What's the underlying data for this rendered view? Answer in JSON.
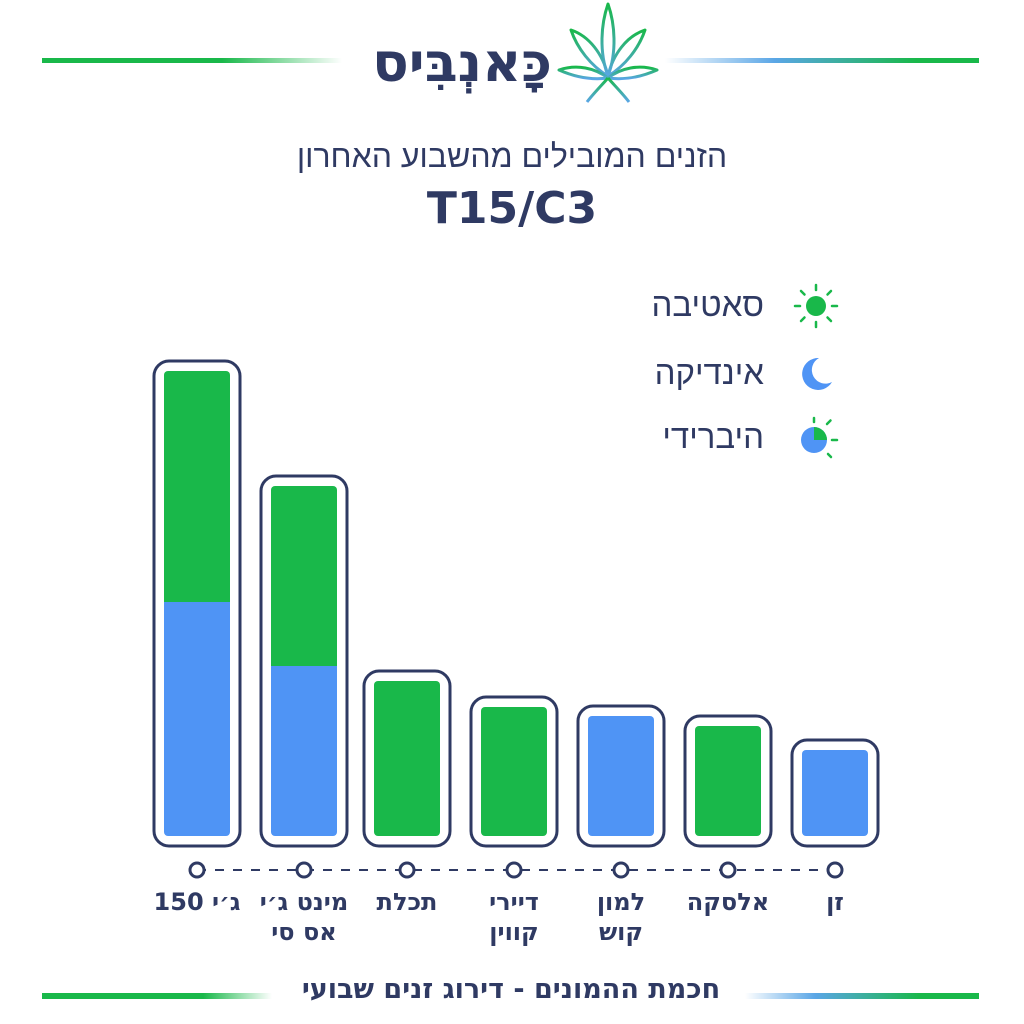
{
  "brand": {
    "name": "כָּאנְבִּיס",
    "icon": "cannabis-leaf-icon",
    "colors": {
      "green": "#19b84a",
      "blue": "#5aa6e6",
      "navy": "#2f3a63"
    }
  },
  "header": {
    "subtitle": "הזנים המובילים מהשבוע האחרון",
    "title": "T15/C3"
  },
  "legend": [
    {
      "label": "סאטיבה",
      "icon": "sun-icon",
      "color": "#19b84a"
    },
    {
      "label": "אינדיקה",
      "icon": "moon-icon",
      "color": "#4f94f5"
    },
    {
      "label": "היברידי",
      "icon": "half-sun-half-moon-icon",
      "color": "#19b84a"
    }
  ],
  "chart_data": {
    "type": "bar",
    "stacked": true,
    "grid": false,
    "legend_position": "top-right",
    "colors": {
      "sativa": "#19b84a",
      "indica": "#4f94f5",
      "frame": "#2f3a63"
    },
    "categories": [
      {
        "lines": [
          "ג׳י 150"
        ]
      },
      {
        "lines": [
          "מינט ג׳י",
          "אס סי"
        ]
      },
      {
        "lines": [
          "תכלת"
        ]
      },
      {
        "lines": [
          "דיירי",
          "קווין"
        ]
      },
      {
        "lines": [
          "למון",
          "קוש"
        ]
      },
      {
        "lines": [
          "אלסקה"
        ]
      },
      {
        "lines": [
          "זן"
        ]
      }
    ],
    "series": [
      {
        "name": "אינדיקה",
        "values": [
          234,
          170,
          0,
          0,
          120,
          0,
          86
        ]
      },
      {
        "name": "סאטיבה",
        "values": [
          231,
          180,
          155,
          129,
          0,
          110,
          0
        ]
      }
    ],
    "ylim": [
      0,
      465
    ]
  },
  "footer": {
    "text": "חכמת ההמונים - דירוג זנים שבועי"
  }
}
